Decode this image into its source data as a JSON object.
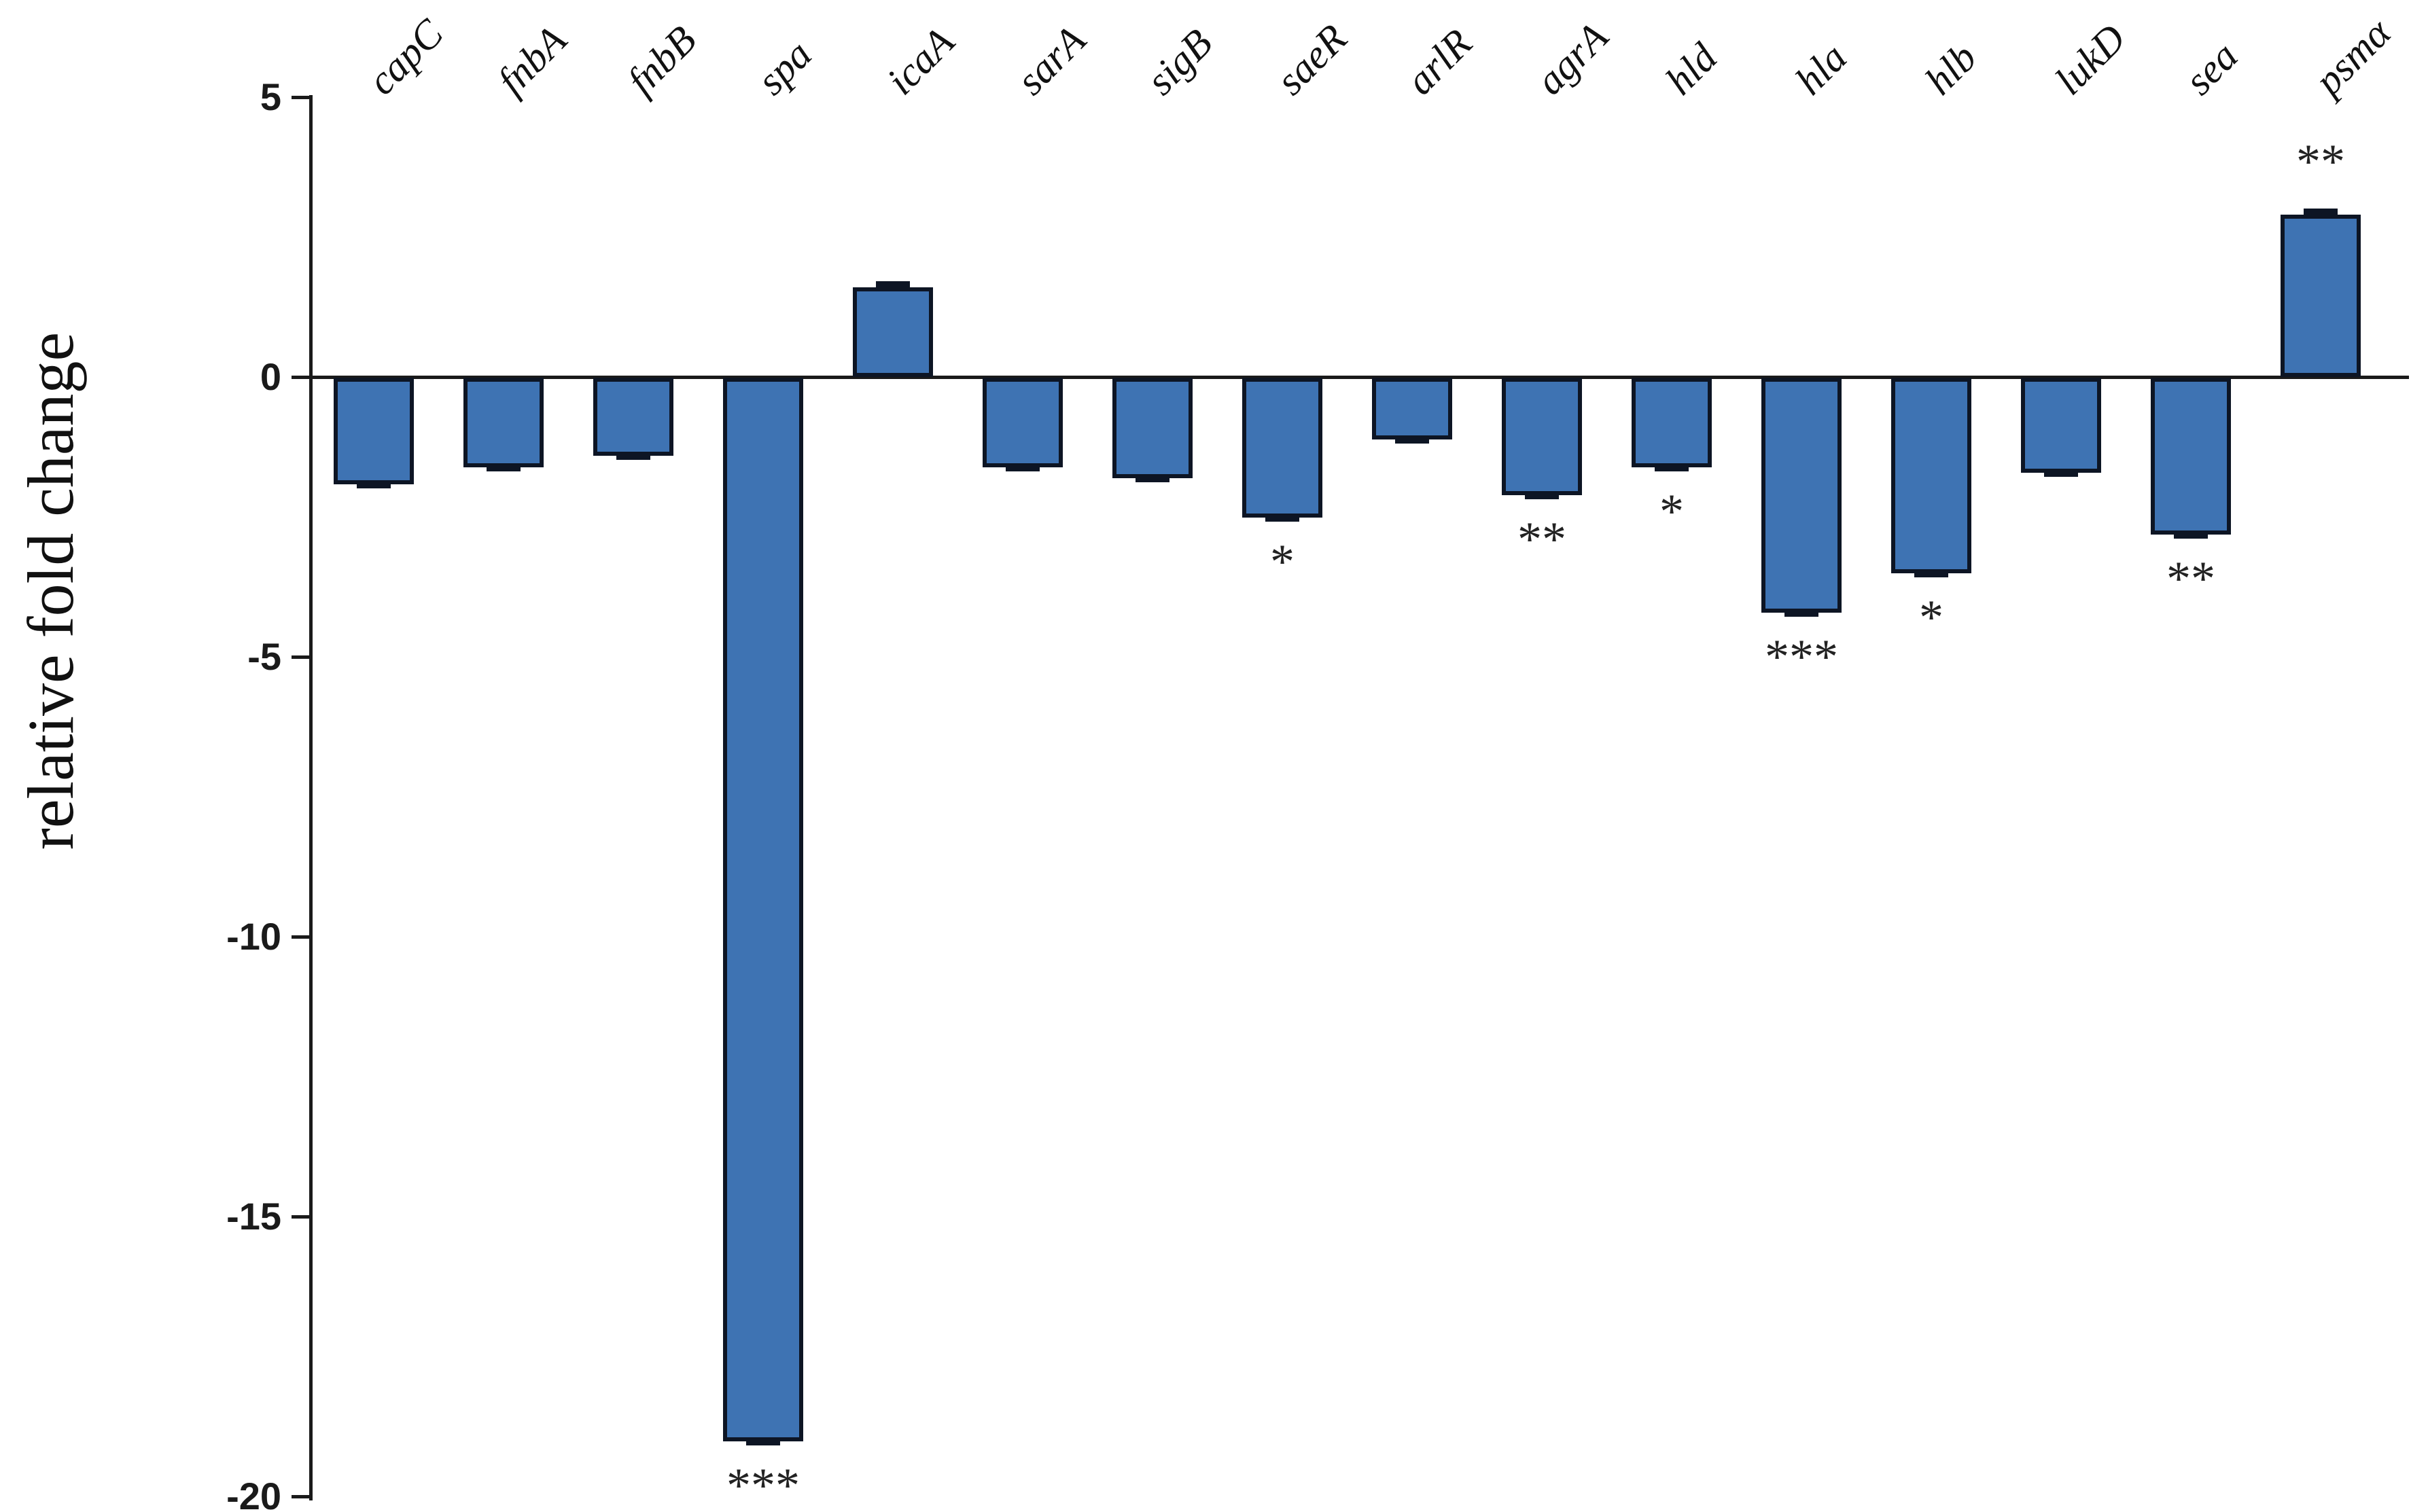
{
  "chart_data": {
    "type": "bar",
    "title": "",
    "xlabel": "",
    "ylabel": "relative fold change",
    "ylim": [
      -20,
      5
    ],
    "yticks": [
      "5",
      "0",
      "-5",
      "-10",
      "-15",
      "-20"
    ],
    "grid": false,
    "legend": "none",
    "categories": [
      "capC",
      "fnbA",
      "fnbB",
      "spa",
      "icaA",
      "sarA",
      "sigB",
      "saeR",
      "arlR",
      "agrA",
      "hld",
      "hla",
      "hlb",
      "lukD",
      "sea",
      "psmα"
    ],
    "values": [
      -1.9,
      -1.6,
      -1.4,
      -19.0,
      1.6,
      -1.6,
      -1.8,
      -2.5,
      -1.1,
      -2.1,
      -1.6,
      -4.2,
      -3.5,
      -1.7,
      -2.8,
      2.9
    ],
    "errors": [
      0.08,
      0.08,
      0.08,
      0.1,
      0.08,
      0.08,
      0.08,
      0.08,
      0.08,
      0.08,
      0.08,
      0.08,
      0.08,
      0.08,
      0.08,
      0.08
    ],
    "significance": [
      "",
      "",
      "",
      "***",
      "",
      "",
      "",
      "*",
      "",
      "**",
      "*",
      "***",
      "*",
      "",
      "**",
      "**"
    ],
    "colors": {
      "bar_fill": "#3e73b3",
      "bar_border": "#0d1524",
      "axis": "#1a1a1a",
      "text": "#111111"
    }
  }
}
